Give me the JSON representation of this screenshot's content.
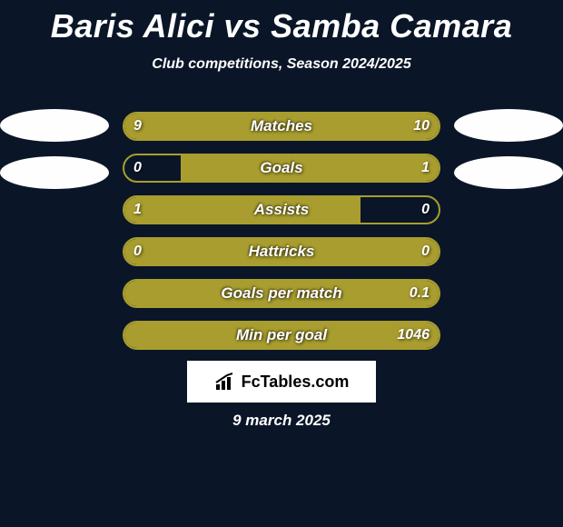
{
  "title": "Baris Alici vs Samba Camara",
  "subtitle": "Club competitions, Season 2024/2025",
  "date": "9 march 2025",
  "logo": {
    "icon": "📊",
    "text": "FcTables.com"
  },
  "colors": {
    "background": "#0a1628",
    "bar_fill": "#a89d2e",
    "bar_border": "#a89d2e",
    "ellipse": "#fefefe",
    "logo_bg": "#ffffff",
    "text": "#ffffff"
  },
  "ellipse_rows": [
    0,
    1
  ],
  "stats": [
    {
      "label": "Matches",
      "left_value": "9",
      "right_value": "10",
      "left_pct": 47,
      "right_pct": 53,
      "side": "both"
    },
    {
      "label": "Goals",
      "left_value": "0",
      "right_value": "1",
      "left_pct": 18,
      "right_pct": 82,
      "side": "right"
    },
    {
      "label": "Assists",
      "left_value": "1",
      "right_value": "0",
      "left_pct": 75,
      "right_pct": 25,
      "side": "left"
    },
    {
      "label": "Hattricks",
      "left_value": "0",
      "right_value": "0",
      "left_pct": 50,
      "right_pct": 50,
      "side": "both"
    },
    {
      "label": "Goals per match",
      "left_value": "",
      "right_value": "0.1",
      "left_pct": 0,
      "right_pct": 100,
      "side": "right"
    },
    {
      "label": "Min per goal",
      "left_value": "",
      "right_value": "1046",
      "left_pct": 0,
      "right_pct": 100,
      "side": "right"
    }
  ]
}
